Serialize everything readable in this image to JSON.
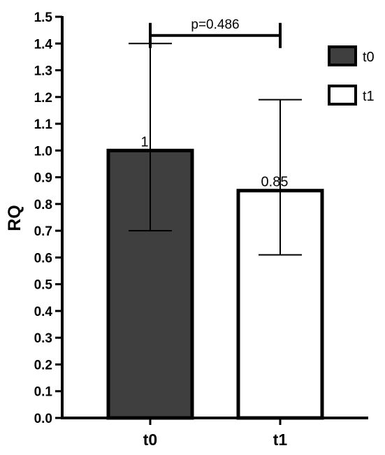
{
  "chart_data": {
    "type": "bar",
    "categories": [
      "t0",
      "t1"
    ],
    "series": [
      {
        "values": [
          1.0,
          0.85
        ],
        "value_labels": [
          "1",
          "0.85"
        ],
        "error_upper": [
          1.4,
          1.19
        ],
        "error_lower": [
          0.7,
          0.61
        ]
      }
    ],
    "bar_colors": [
      "#3f3f3f",
      "#ffffff"
    ],
    "bar_edge_color": "#000000",
    "legend": [
      {
        "label": "t0",
        "color": "#3f3f3f"
      },
      {
        "label": "t1",
        "color": "#ffffff"
      }
    ],
    "legend_position": "right",
    "ylabel": "RQ",
    "xlabel": "",
    "ylim": [
      0,
      1.5
    ],
    "yticks": [
      "0.0",
      "0.1",
      "0.2",
      "0.3",
      "0.4",
      "0.5",
      "0.6",
      "0.7",
      "0.8",
      "0.9",
      "1.0",
      "1.1",
      "1.2",
      "1.3",
      "1.4",
      "1.5"
    ],
    "grid": false,
    "significance": {
      "text": "p=0.486",
      "between": [
        "t0",
        "t1"
      ],
      "y": 1.43
    }
  }
}
